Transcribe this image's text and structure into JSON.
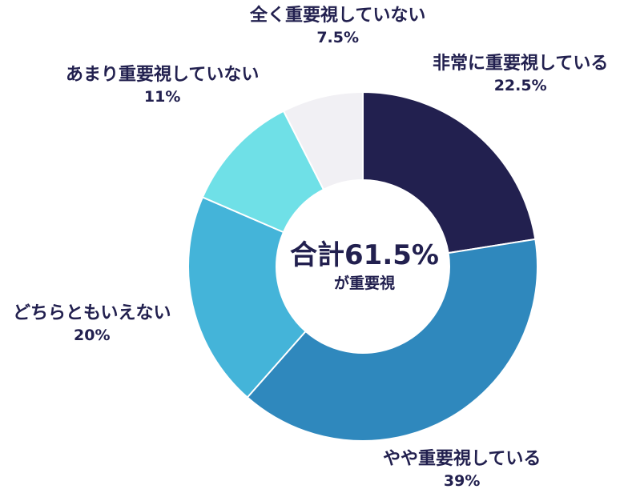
{
  "chart_data": {
    "type": "donut",
    "categories": [
      "非常に重要視している",
      "やや重要視している",
      "どちらともいえない",
      "あまり重要視していない",
      "全く重要視していない"
    ],
    "values": [
      22.5,
      39,
      20,
      11,
      7.5
    ],
    "value_labels": [
      "22.5%",
      "39%",
      "20%",
      "11%",
      "7.5%"
    ],
    "colors": [
      "#22204f",
      "#2f88bd",
      "#44b4d9",
      "#6fe0e7",
      "#f1f0f4"
    ],
    "start_angle_deg": 0,
    "direction": "clockwise",
    "center_text": {
      "main": "合計61.5%",
      "sub": "が重要視"
    }
  }
}
